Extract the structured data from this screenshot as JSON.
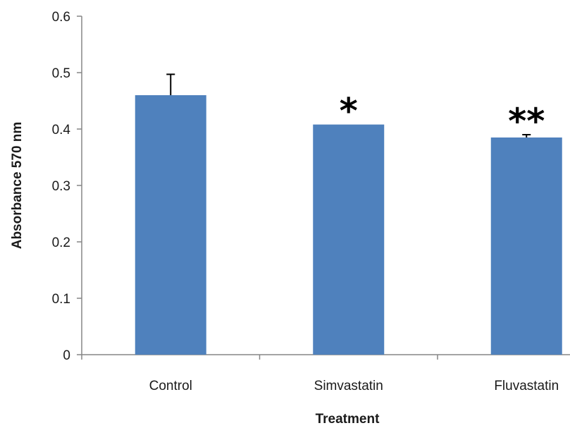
{
  "chart_data": {
    "type": "bar",
    "title": "",
    "xlabel": "Treatment",
    "ylabel": "Absorbance 570 nm",
    "categories": [
      "Control",
      "Simvastatin",
      "Fluvastatin"
    ],
    "values": [
      0.46,
      0.408,
      0.385
    ],
    "error_plus": [
      0.037,
      0.0,
      0.005
    ],
    "annotations": [
      "",
      "*",
      "**"
    ],
    "ylim": [
      0,
      0.6
    ],
    "yticks": [
      0,
      0.1,
      0.2,
      0.3,
      0.4,
      0.5,
      0.6
    ],
    "ytick_labels": [
      "0",
      "0.1",
      "0.2",
      "0.3",
      "0.4",
      "0.5",
      "0.6"
    ],
    "grid": false,
    "legend": "none",
    "bar_color": "#4f81bd",
    "axis_color": "#868686"
  }
}
